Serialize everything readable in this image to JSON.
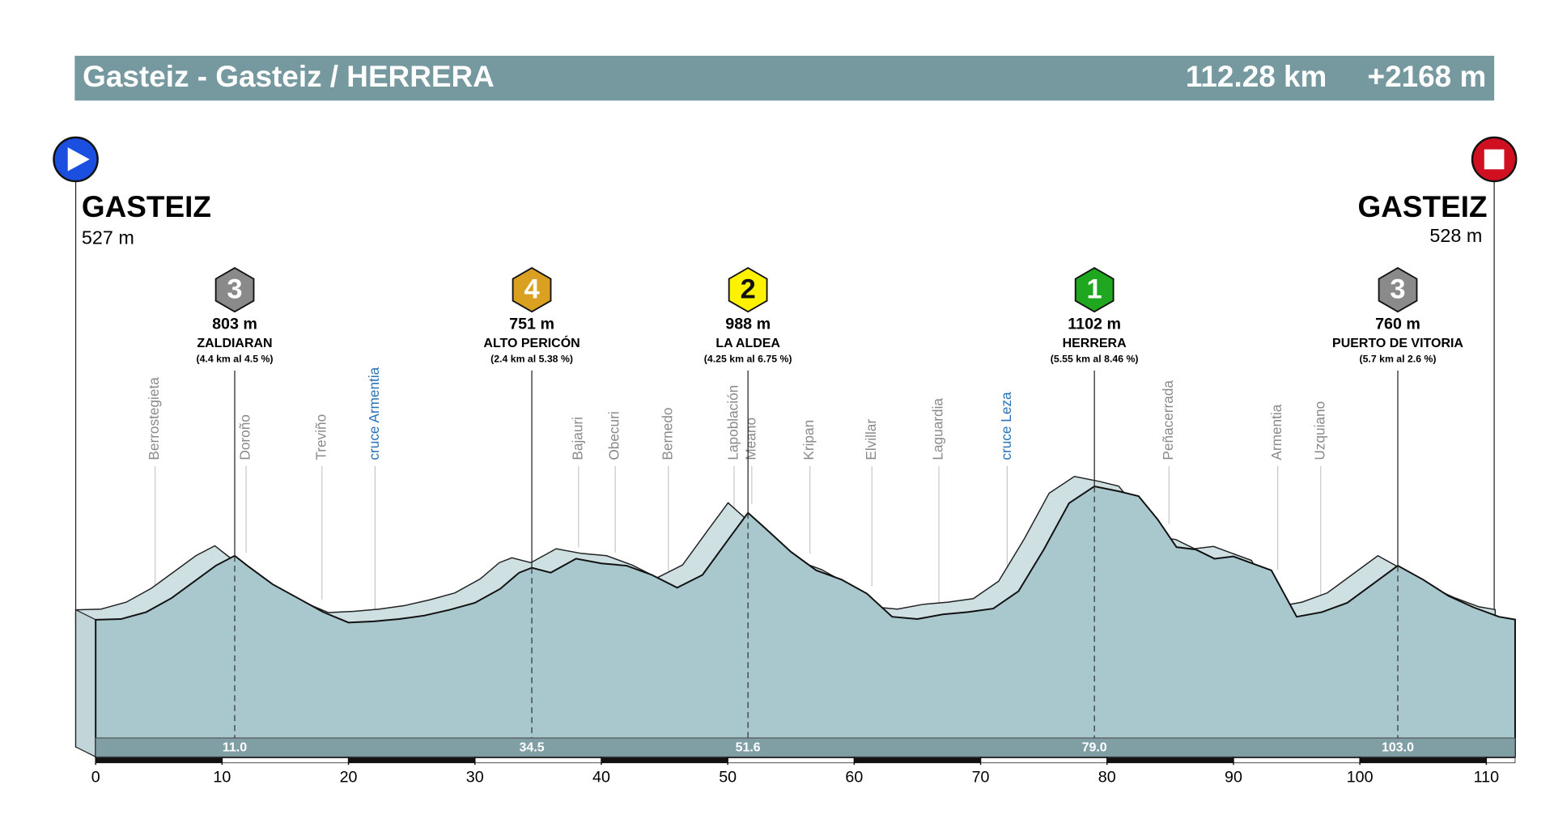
{
  "chart_data": {
    "type": "area",
    "title": "Gasteiz - Gasteiz / HERRERA",
    "distance": "112.28 km",
    "climbing": "+2168 m",
    "start": {
      "name": "GASTEIZ",
      "altitude": {
        "value": 527,
        "label": "527 m"
      }
    },
    "finish": {
      "name": "GASTEIZ",
      "altitude": {
        "value": 528,
        "label": "528 m"
      }
    },
    "x": [
      0,
      2,
      4,
      6,
      8,
      9.5,
      11,
      12,
      14,
      16,
      18,
      20,
      22,
      24,
      26,
      28,
      30,
      32,
      33.5,
      34.5,
      36,
      38,
      40,
      42,
      44,
      46,
      48,
      50,
      51.6,
      53,
      55,
      57,
      59,
      61,
      63,
      65,
      67,
      69,
      71,
      73,
      75,
      77,
      79,
      81,
      82.5,
      84,
      85.5,
      87,
      88.5,
      90,
      91,
      93,
      95,
      97,
      99,
      101,
      103,
      105,
      107,
      109,
      111,
      112.28
    ],
    "values": [
      527,
      530,
      560,
      620,
      700,
      760,
      803,
      760,
      680,
      620,
      560,
      515,
      520,
      530,
      545,
      570,
      600,
      660,
      730,
      751,
      730,
      790,
      770,
      760,
      720,
      665,
      720,
      870,
      988,
      920,
      820,
      740,
      700,
      640,
      540,
      530,
      550,
      560,
      575,
      650,
      830,
      1030,
      1102,
      1080,
      1060,
      960,
      840,
      830,
      790,
      800,
      780,
      740,
      540,
      560,
      600,
      680,
      760,
      700,
      630,
      580,
      540,
      528
    ],
    "color": "#a9c8ce",
    "xlim": [
      0,
      112.28
    ],
    "xticks": [
      0,
      10,
      20,
      30,
      40,
      50,
      60,
      70,
      80,
      90,
      100,
      110
    ],
    "ylim": [
      0,
      1400
    ],
    "climbs": [
      {
        "category": "3",
        "color": "#8a8a8a",
        "altitude": {
          "value": 803,
          "label": "803 m"
        },
        "name": "ZALDIARAN",
        "detail": "(4.4 km  al  4.5 %)",
        "km": {
          "value": 11,
          "label": "11.0"
        }
      },
      {
        "category": "4",
        "color": "#d9a021",
        "altitude": {
          "value": 751,
          "label": "751 m"
        },
        "name": "ALTO PERICÓN",
        "detail": "(2.4 km  al  5.38 %)",
        "km": {
          "value": 34.5,
          "label": "34.5"
        }
      },
      {
        "category": "2",
        "color": "#fff200",
        "altitude": {
          "value": 988,
          "label": "988 m"
        },
        "name": "LA ALDEA",
        "detail": "(4.25 km  al  6.75 %)",
        "km": {
          "value": 51.6,
          "label": "51.6"
        }
      },
      {
        "category": "1",
        "color": "#1fa81f",
        "altitude": {
          "value": 1102,
          "label": "1102 m"
        },
        "name": "HERRERA",
        "detail": "(5.55 km  al  8.46 %)",
        "km": {
          "value": 79,
          "label": "79.0"
        }
      },
      {
        "category": "3",
        "color": "#8a8a8a",
        "altitude": {
          "value": 760,
          "label": "760 m"
        },
        "name": "PUERTO DE VITORIA",
        "detail": "(5.7 km  al  2.6 %)",
        "km": {
          "value": 103,
          "label": "103.0"
        }
      }
    ],
    "towns": [
      {
        "name": "Berrostegieta",
        "km": 4.7,
        "color": "#8a8a8a"
      },
      {
        "name": "Doroño",
        "km": 11.9,
        "color": "#8a8a8a"
      },
      {
        "name": "Treviño",
        "km": 17.9,
        "color": "#8a8a8a"
      },
      {
        "name": "cruce Armentia",
        "km": 22.1,
        "color": "#2a72b8"
      },
      {
        "name": "Bajauri",
        "km": 38.2,
        "color": "#8a8a8a"
      },
      {
        "name": "Obecuri",
        "km": 41.1,
        "color": "#8a8a8a"
      },
      {
        "name": "Bernedo",
        "km": 45.3,
        "color": "#8a8a8a"
      },
      {
        "name": "Lapoblación",
        "km": 50.5,
        "color": "#8a8a8a"
      },
      {
        "name": "Meano",
        "km": 51.9,
        "color": "#8a8a8a"
      },
      {
        "name": "Kripan",
        "km": 56.5,
        "color": "#8a8a8a"
      },
      {
        "name": "Elvillar",
        "km": 61.4,
        "color": "#8a8a8a"
      },
      {
        "name": "Laguardia",
        "km": 66.7,
        "color": "#8a8a8a"
      },
      {
        "name": "cruce Leza",
        "km": 72.1,
        "color": "#2a72b8"
      },
      {
        "name": "Peñacerrada",
        "km": 84.9,
        "color": "#8a8a8a"
      },
      {
        "name": "Armentia",
        "km": 93.5,
        "color": "#8a8a8a"
      },
      {
        "name": "Uzquiano",
        "km": 96.9,
        "color": "#8a8a8a"
      }
    ]
  }
}
